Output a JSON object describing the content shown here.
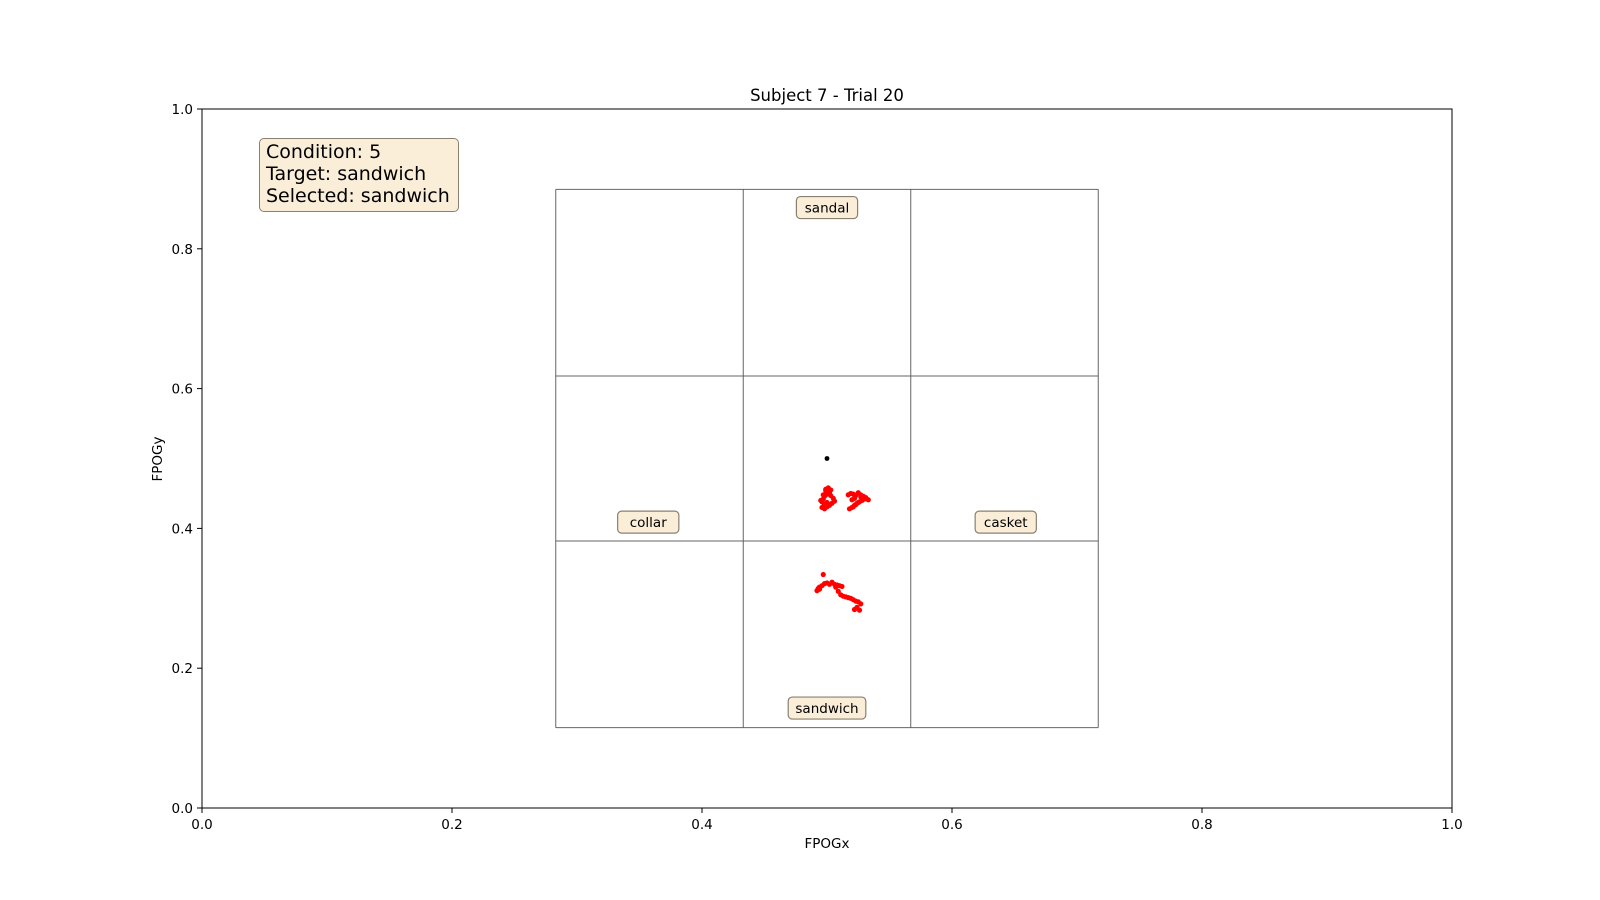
{
  "chart_data": {
    "type": "scatter",
    "title": "Subject 7 - Trial 20",
    "xlabel": "FPOGx",
    "ylabel": "FPOGy",
    "xlim": [
      0.0,
      1.0
    ],
    "ylim": [
      0.0,
      1.0
    ],
    "x_ticks": [
      "0.0",
      "0.2",
      "0.4",
      "0.6",
      "0.8",
      "1.0"
    ],
    "y_ticks": [
      "0.0",
      "0.2",
      "0.4",
      "0.6",
      "0.8",
      "1.0"
    ],
    "grid": false,
    "info_box": {
      "lines": [
        "Condition: 5",
        "Target: sandwich",
        "Selected: sandwich"
      ]
    },
    "stimulus_grid": {
      "x_lines": [
        0.283,
        0.433,
        0.567,
        0.717
      ],
      "y_lines": [
        0.115,
        0.382,
        0.618,
        0.885
      ],
      "color": "#555555"
    },
    "item_labels": [
      {
        "text": "sandal",
        "x": 0.5,
        "y": 0.859
      },
      {
        "text": "collar",
        "x": 0.357,
        "y": 0.409
      },
      {
        "text": "casket",
        "x": 0.643,
        "y": 0.409
      },
      {
        "text": "sandwich",
        "x": 0.5,
        "y": 0.143
      }
    ],
    "center_point": {
      "x": 0.5,
      "y": 0.5,
      "color": "#000000"
    },
    "series": [
      {
        "color": "#ff0000",
        "x": [
          0.499,
          0.501,
          0.503,
          0.502,
          0.5,
          0.498,
          0.497,
          0.496,
          0.498,
          0.5,
          0.502,
          0.504,
          0.506,
          0.505,
          0.503,
          0.501,
          0.499,
          0.497,
          0.495,
          0.496,
          0.498,
          0.5,
          0.517,
          0.519,
          0.521,
          0.523,
          0.525,
          0.527,
          0.529,
          0.531,
          0.533,
          0.53,
          0.528,
          0.526,
          0.524,
          0.522,
          0.52,
          0.518,
          0.521,
          0.523,
          0.525,
          0.527,
          0.522,
          0.52,
          0.494,
          0.492,
          0.494,
          0.496,
          0.498,
          0.5,
          0.502,
          0.504,
          0.506,
          0.508,
          0.51,
          0.512,
          0.507,
          0.509,
          0.511,
          0.513,
          0.515,
          0.517,
          0.519,
          0.521,
          0.523,
          0.525,
          0.527,
          0.524,
          0.522,
          0.526,
          0.497,
          0.493
        ],
        "y": [
          0.456,
          0.458,
          0.455,
          0.451,
          0.449,
          0.446,
          0.442,
          0.438,
          0.434,
          0.431,
          0.433,
          0.436,
          0.439,
          0.443,
          0.447,
          0.452,
          0.454,
          0.448,
          0.44,
          0.43,
          0.428,
          0.437,
          0.448,
          0.45,
          0.449,
          0.447,
          0.451,
          0.448,
          0.446,
          0.444,
          0.441,
          0.442,
          0.44,
          0.438,
          0.436,
          0.433,
          0.43,
          0.428,
          0.431,
          0.434,
          0.437,
          0.445,
          0.443,
          0.441,
          0.313,
          0.311,
          0.316,
          0.318,
          0.321,
          0.322,
          0.32,
          0.323,
          0.32,
          0.319,
          0.318,
          0.317,
          0.316,
          0.31,
          0.305,
          0.303,
          0.302,
          0.301,
          0.3,
          0.298,
          0.296,
          0.295,
          0.292,
          0.287,
          0.284,
          0.283,
          0.334,
          0.314
        ]
      }
    ]
  }
}
